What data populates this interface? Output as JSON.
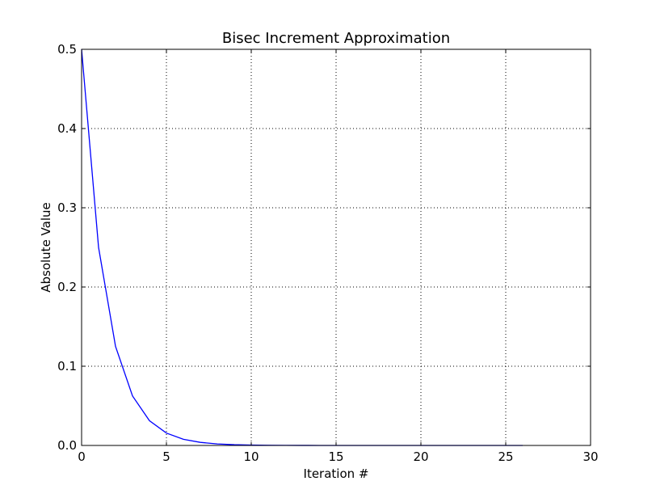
{
  "chart_data": {
    "type": "line",
    "title": "Bisec Increment Approximation",
    "xlabel": "Iteration #",
    "ylabel": "Absolute Value",
    "xlim": [
      0,
      30
    ],
    "ylim": [
      0,
      0.5
    ],
    "grid": true,
    "grid_style": "dotted",
    "x_ticks": [
      0,
      5,
      10,
      15,
      20,
      25,
      30
    ],
    "x_tick_labels": [
      "0",
      "5",
      "10",
      "15",
      "20",
      "25",
      "30"
    ],
    "y_ticks": [
      0,
      0.1,
      0.2,
      0.3,
      0.4,
      0.5
    ],
    "y_tick_labels": [
      "0.0",
      "0.1",
      "0.2",
      "0.3",
      "0.4",
      "0.5"
    ],
    "series": [
      {
        "color": "#0000ff",
        "x": [
          0,
          1,
          2,
          3,
          4,
          5,
          6,
          7,
          8,
          9,
          10,
          11,
          12,
          13,
          14,
          15,
          16,
          17,
          18,
          19,
          20,
          21,
          22,
          23,
          24,
          25,
          26
        ],
        "values": [
          0.5,
          0.25,
          0.125,
          0.0625,
          0.03125,
          0.015625,
          0.0078125,
          0.00390625,
          0.001953125,
          0.0009765625,
          0.00048828125,
          0.000244140625,
          0.0001220703125,
          6.103515625e-05,
          3.0517578125e-05,
          1.52587890625e-05,
          7.62939453125e-06,
          3.814697265625e-06,
          1.9073486328125e-06,
          9.5367431640625e-07,
          4.76837158203125e-07,
          2.384185791015625e-07,
          1.1920928955078125e-07,
          5.960464477539063e-08,
          2.9802322387695312e-08,
          1.4901161193847656e-08,
          7.450580596923828e-09
        ]
      }
    ]
  }
}
